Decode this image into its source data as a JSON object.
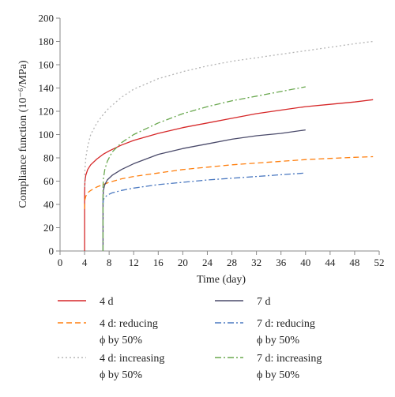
{
  "chart_data": {
    "type": "line",
    "title": "",
    "xlabel": "Time (day)",
    "ylabel": "Compliance function (10⁻⁶/MPa)",
    "xlim": [
      0,
      52
    ],
    "ylim": [
      0,
      200
    ],
    "xticks": [
      0,
      4,
      8,
      12,
      16,
      20,
      24,
      28,
      32,
      36,
      40,
      44,
      48,
      52
    ],
    "yticks": [
      0,
      20,
      40,
      60,
      80,
      100,
      120,
      140,
      160,
      180,
      200
    ],
    "grid": false,
    "legend_position": "bottom",
    "series": [
      {
        "name": "4 d",
        "color": "#d62728",
        "dash": "solid",
        "x": [
          4,
          4,
          4.05,
          4.2,
          4.5,
          5,
          6,
          7,
          8,
          10,
          12,
          16,
          20,
          24,
          28,
          32,
          36,
          40,
          44,
          48,
          51
        ],
        "y": [
          0,
          50,
          60,
          65,
          70,
          74,
          79,
          83,
          86,
          91,
          95,
          101,
          106,
          110,
          114,
          118,
          121,
          124,
          126,
          128,
          130
        ]
      },
      {
        "name": "4 d: reducing ϕ by 50%",
        "color": "#ff7f0e",
        "dash": "dashed",
        "x": [
          4,
          4.05,
          4.2,
          4.5,
          5,
          6,
          7,
          8,
          10,
          12,
          16,
          20,
          24,
          28,
          32,
          36,
          40,
          44,
          48,
          51
        ],
        "y": [
          36,
          44,
          47,
          50,
          52,
          55,
          57,
          59,
          62,
          64,
          67,
          70,
          72,
          74,
          75.5,
          77,
          78.5,
          79.5,
          80.5,
          81
        ]
      },
      {
        "name": "4 d: increasing ϕ by 50%",
        "color": "#b5b5b5",
        "dash": "dotted",
        "x": [
          4,
          4.05,
          4.2,
          4.5,
          5,
          6,
          7,
          8,
          10,
          12,
          16,
          20,
          24,
          28,
          32,
          36,
          40,
          44,
          48,
          51
        ],
        "y": [
          55,
          70,
          80,
          90,
          100,
          110,
          117,
          123,
          132,
          139,
          148,
          154,
          159,
          163,
          166,
          169,
          172,
          175,
          178,
          180
        ]
      },
      {
        "name": "7 d",
        "color": "#4a4a6a",
        "dash": "solid",
        "x": [
          7,
          7,
          7.05,
          7.3,
          7.7,
          8.5,
          10,
          12,
          16,
          20,
          24,
          28,
          32,
          36,
          40
        ],
        "y": [
          0,
          45,
          52,
          57,
          61,
          65,
          70,
          75,
          83,
          88,
          92,
          96,
          99,
          101,
          104
        ]
      },
      {
        "name": "7 d: reducing ϕ by 50%",
        "color": "#4a78c0",
        "dash": "dashdot",
        "x": [
          7,
          7.05,
          7.3,
          7.7,
          8.5,
          10,
          12,
          16,
          20,
          24,
          28,
          32,
          36,
          40
        ],
        "y": [
          40,
          44,
          46,
          48,
          50,
          52,
          54,
          57,
          59,
          61,
          62.5,
          64,
          65.5,
          67
        ]
      },
      {
        "name": "7 d: increasing ϕ by 50%",
        "color": "#6aa84f",
        "dash": "dashdot",
        "x": [
          7,
          7,
          7.05,
          7.3,
          7.7,
          8.5,
          10,
          12,
          16,
          20,
          24,
          28,
          32,
          36,
          40
        ],
        "y": [
          0,
          55,
          62,
          70,
          77,
          85,
          93,
          100,
          110,
          118,
          124,
          129,
          133,
          137,
          141
        ]
      }
    ],
    "legend": [
      {
        "line1": "4 d",
        "line2": ""
      },
      {
        "line1": "7 d",
        "line2": ""
      },
      {
        "line1": "4 d: reducing",
        "line2": "ϕ by 50%"
      },
      {
        "line1": "7 d: reducing",
        "line2": "ϕ by 50%"
      },
      {
        "line1": "4 d: increasing",
        "line2": "ϕ by 50%"
      },
      {
        "line1": "7 d: increasing",
        "line2": "ϕ by 50%"
      }
    ]
  }
}
